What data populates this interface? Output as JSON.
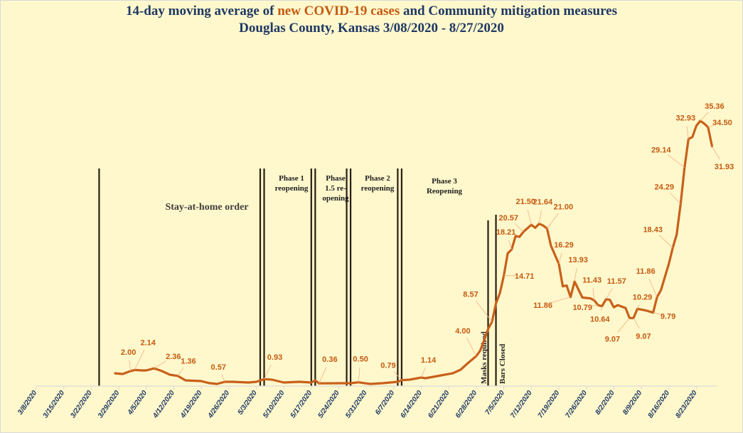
{
  "chart_data": {
    "type": "line",
    "title_line1_prefix": "14-day moving average of ",
    "title_line1_highlight": "new COVID-19 cases",
    "title_line1_suffix": " and Community mitigation measures",
    "title_line2": "Douglas County, Kansas 3/08/2020 - 8/27/2020",
    "xlabel": "",
    "ylabel": "",
    "ylim": [
      0,
      40
    ],
    "y_axis_visible": false,
    "grid": false,
    "legend": "none",
    "colors": {
      "line": "#c8601a",
      "highlight": "#c55a11",
      "title": "#1f3864",
      "background": "#fff8cc",
      "event_line": "#2b1d12",
      "leader": "#f4b183"
    },
    "x_tick_labels": [
      "3/8/2020",
      "3/15/2020",
      "3/22/2020",
      "3/29/2020",
      "4/5/2020",
      "4/12/2020",
      "4/19/2020",
      "4/26/2020",
      "5/3/2020",
      "5/10/2020",
      "5/17/2020",
      "5/24/2020",
      "5/31/2020",
      "6/7/2020",
      "6/14/2020",
      "6/21/2020",
      "6/28/2020",
      "7/5/2020",
      "7/12/2020",
      "7/19/2020",
      "7/26/2020",
      "8/2/2020",
      "8/9/2020",
      "8/16/2020",
      "8/23/2020"
    ],
    "x": [
      "3/28/2020",
      "3/30/2020",
      "4/1/2020",
      "4/2/2020",
      "4/4/2020",
      "4/5/2020",
      "4/7/2020",
      "4/9/2020",
      "4/11/2020",
      "4/13/2020",
      "4/15/2020",
      "4/19/2020",
      "4/21/2020",
      "4/23/2020",
      "4/25/2020",
      "4/27/2020",
      "5/1/2020",
      "5/3/2020",
      "5/5/2020",
      "5/7/2020",
      "5/10/2020",
      "5/14/2020",
      "5/17/2020",
      "5/18/2020",
      "5/19/2020",
      "5/25/2020",
      "5/27/2020",
      "5/29/2020",
      "6/1/2020",
      "6/4/2020",
      "6/8/2020",
      "6/9/2020",
      "6/11/2020",
      "6/14/2020",
      "6/15/2020",
      "6/18/2020",
      "6/22/2020",
      "6/24/2020",
      "6/26/2020",
      "6/28/2020",
      "6/29/2020",
      "6/30/2020",
      "7/1/2020",
      "7/2/2020",
      "7/3/2020",
      "7/4/2020",
      "7/5/2020",
      "7/6/2020",
      "7/7/2020",
      "7/8/2020",
      "7/9/2020",
      "7/10/2020",
      "7/12/2020",
      "7/13/2020",
      "7/14/2020",
      "7/15/2020",
      "7/16/2020",
      "7/17/2020",
      "7/19/2020",
      "7/20/2020",
      "7/21/2020",
      "7/22/2020",
      "7/23/2020",
      "7/25/2020",
      "7/27/2020",
      "7/28/2020",
      "7/29/2020",
      "7/30/2020",
      "7/31/2020",
      "8/1/2020",
      "8/2/2020",
      "8/3/2020",
      "8/5/2020",
      "8/6/2020",
      "8/7/2020",
      "8/8/2020",
      "8/10/2020",
      "8/12/2020",
      "8/13/2020",
      "8/14/2020",
      "8/16/2020",
      "8/17/2020",
      "8/18/2020",
      "8/19/2020",
      "8/20/2020",
      "8/21/2020",
      "8/22/2020",
      "8/23/2020",
      "8/24/2020",
      "8/25/2020",
      "8/26/2020",
      "8/27/2020"
    ],
    "values": [
      1.71,
      1.61,
      2.0,
      2.14,
      2.09,
      2.09,
      2.36,
      2.0,
      1.52,
      1.36,
      0.76,
      0.66,
      0.4,
      0.28,
      0.57,
      0.57,
      0.47,
      0.57,
      0.93,
      0.85,
      0.47,
      0.57,
      0.47,
      0.76,
      0.36,
      0.38,
      0.38,
      0.5,
      0.28,
      0.38,
      0.57,
      0.79,
      0.85,
      1.14,
      1.04,
      1.33,
      1.71,
      2.18,
      3.13,
      4.0,
      4.74,
      6.1,
      7.6,
      8.57,
      11.0,
      12.4,
      14.71,
      17.7,
      18.21,
      20.0,
      19.9,
      20.57,
      21.5,
      21.1,
      21.64,
      21.4,
      21.0,
      18.7,
      16.29,
      13.3,
      13.4,
      11.86,
      13.93,
      11.8,
      11.7,
      11.43,
      10.79,
      10.64,
      11.57,
      11.5,
      10.5,
      10.8,
      10.4,
      9.07,
      9.07,
      10.29,
      10.1,
      9.79,
      11.86,
      12.8,
      16.3,
      18.43,
      20.2,
      24.29,
      29.14,
      32.93,
      33.2,
      34.7,
      35.36,
      35.0,
      34.5,
      31.93
    ],
    "data_labels": [
      {
        "x": "4/1/2020",
        "text": "2.00"
      },
      {
        "x": "4/2/2020",
        "text": "2.14"
      },
      {
        "x": "4/7/2020",
        "text": "2.36"
      },
      {
        "x": "4/13/2020",
        "text": "1.36"
      },
      {
        "x": "4/25/2020",
        "text": "0.57"
      },
      {
        "x": "5/5/2020",
        "text": "0.93"
      },
      {
        "x": "5/19/2020",
        "text": "0.36"
      },
      {
        "x": "5/29/2020",
        "text": "0.50"
      },
      {
        "x": "6/9/2020",
        "text": "0.79"
      },
      {
        "x": "6/14/2020",
        "text": "1.14"
      },
      {
        "x": "6/28/2020",
        "text": "4.00"
      },
      {
        "x": "7/2/2020",
        "text": "8.57"
      },
      {
        "x": "7/5/2020",
        "text": "14.71"
      },
      {
        "x": "7/7/2020",
        "text": "18.21"
      },
      {
        "x": "7/10/2020",
        "text": "20.57"
      },
      {
        "x": "7/12/2020",
        "text": "21.50"
      },
      {
        "x": "7/14/2020",
        "text": "21.64"
      },
      {
        "x": "7/16/2020",
        "text": "21.00"
      },
      {
        "x": "7/19/2020",
        "text": "16.29"
      },
      {
        "x": "7/23/2020",
        "text": "13.93"
      },
      {
        "x": "7/22/2020",
        "text": "11.86"
      },
      {
        "x": "7/29/2020",
        "text": "10.79"
      },
      {
        "x": "7/28/2020",
        "text": "11.43"
      },
      {
        "x": "7/31/2020",
        "text": "11.57"
      },
      {
        "x": "7/30/2020",
        "text": "10.64"
      },
      {
        "x": "8/6/2020",
        "text": "9.07"
      },
      {
        "x": "8/7/2020",
        "text": "9.07"
      },
      {
        "x": "8/8/2020",
        "text": "10.29"
      },
      {
        "x": "8/12/2020",
        "text": "9.79"
      },
      {
        "x": "8/13/2020",
        "text": "11.86"
      },
      {
        "x": "8/17/2020",
        "text": "18.43"
      },
      {
        "x": "8/19/2020",
        "text": "24.29"
      },
      {
        "x": "8/20/2020",
        "text": "29.14"
      },
      {
        "x": "8/21/2020",
        "text": "32.93"
      },
      {
        "x": "8/24/2020",
        "text": "35.36"
      },
      {
        "x": "8/26/2020",
        "text": "34.50"
      },
      {
        "x": "8/27/2020",
        "text": "31.93"
      }
    ],
    "event_lines": [
      "3/24/2020",
      "5/4/2020",
      "5/5/2020",
      "5/17/2020",
      "5/18/2020",
      "5/26/2020",
      "5/27/2020",
      "6/8/2020",
      "6/9/2020",
      "7/1/2020",
      "7/3/2020"
    ],
    "annotations": {
      "stay_at_home": "Stay-at-home order",
      "phase1": [
        "Phase 1",
        "reopening"
      ],
      "phase15": [
        "Phase",
        "1.5 re-",
        "opening"
      ],
      "phase2": [
        "Phase 2",
        "reopening"
      ],
      "phase3": [
        "Phase 3",
        "Reopening"
      ],
      "masks": "Masks required",
      "bars": "Bars Closed"
    }
  }
}
